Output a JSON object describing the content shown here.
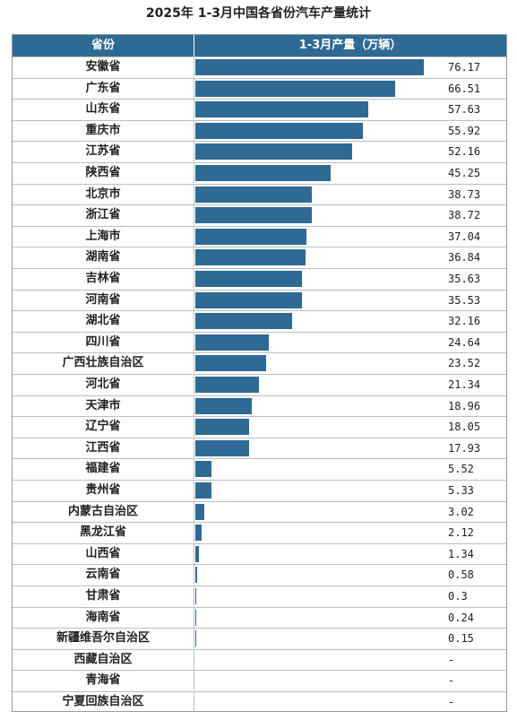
{
  "chart_data": {
    "type": "table",
    "title": "2025年 1-3月中国各省份汽车产量统计",
    "columns": [
      "省份",
      "1-3月产量（万辆）"
    ],
    "colors": {
      "header_bg": "#2e6a93",
      "bar": "#2e6a93"
    },
    "rows": [
      {
        "province": "安徽省",
        "value": 76.17,
        "label": "76.17"
      },
      {
        "province": "广东省",
        "value": 66.51,
        "label": "66.51"
      },
      {
        "province": "山东省",
        "value": 57.63,
        "label": "57.63"
      },
      {
        "province": "重庆市",
        "value": 55.92,
        "label": "55.92"
      },
      {
        "province": "江苏省",
        "value": 52.16,
        "label": "52.16"
      },
      {
        "province": "陕西省",
        "value": 45.25,
        "label": "45.25"
      },
      {
        "province": "北京市",
        "value": 38.73,
        "label": "38.73"
      },
      {
        "province": "浙江省",
        "value": 38.72,
        "label": "38.72"
      },
      {
        "province": "上海市",
        "value": 37.04,
        "label": "37.04"
      },
      {
        "province": "湖南省",
        "value": 36.84,
        "label": "36.84"
      },
      {
        "province": "吉林省",
        "value": 35.63,
        "label": "35.63"
      },
      {
        "province": "河南省",
        "value": 35.53,
        "label": "35.53"
      },
      {
        "province": "湖北省",
        "value": 32.16,
        "label": "32.16"
      },
      {
        "province": "四川省",
        "value": 24.64,
        "label": "24.64"
      },
      {
        "province": "广西壮族自治区",
        "value": 23.52,
        "label": "23.52"
      },
      {
        "province": "河北省",
        "value": 21.34,
        "label": "21.34"
      },
      {
        "province": "天津市",
        "value": 18.96,
        "label": "18.96"
      },
      {
        "province": "辽宁省",
        "value": 18.05,
        "label": "18.05"
      },
      {
        "province": "江西省",
        "value": 17.93,
        "label": "17.93"
      },
      {
        "province": "福建省",
        "value": 5.52,
        "label": "5.52"
      },
      {
        "province": "贵州省",
        "value": 5.33,
        "label": "5.33"
      },
      {
        "province": "内蒙古自治区",
        "value": 3.02,
        "label": "3.02"
      },
      {
        "province": "黑龙江省",
        "value": 2.12,
        "label": "2.12"
      },
      {
        "province": "山西省",
        "value": 1.34,
        "label": "1.34"
      },
      {
        "province": "云南省",
        "value": 0.58,
        "label": "0.58"
      },
      {
        "province": "甘肃省",
        "value": 0.3,
        "label": "0.3"
      },
      {
        "province": "海南省",
        "value": 0.24,
        "label": "0.24"
      },
      {
        "province": "新疆维吾尔自治区",
        "value": 0.15,
        "label": "0.15"
      },
      {
        "province": "西藏自治区",
        "value": null,
        "label": "-"
      },
      {
        "province": "青海省",
        "value": null,
        "label": "-"
      },
      {
        "province": "宁夏回族自治区",
        "value": null,
        "label": "-"
      }
    ]
  }
}
